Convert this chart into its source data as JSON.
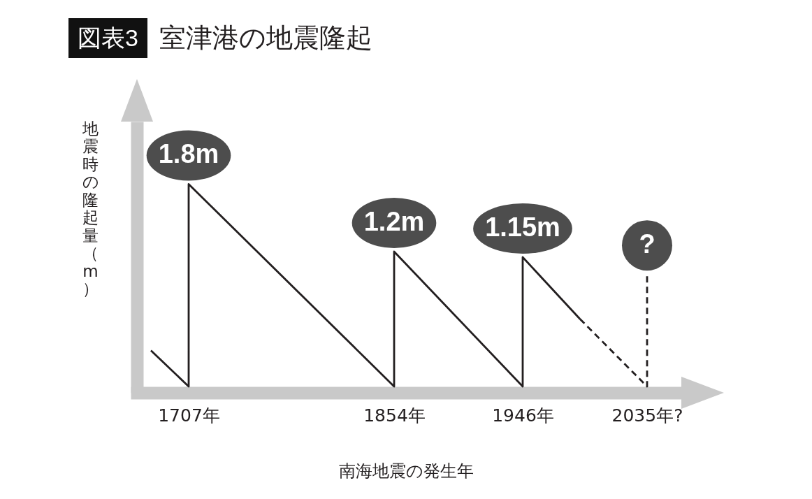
{
  "chart_data": {
    "type": "line",
    "title": "図表3 室津港の地震隆起",
    "xlabel": "南海地震の発生年",
    "ylabel": "地震時の隆起量（m）",
    "xlim": [
      1670,
      2055
    ],
    "xticks": [
      {
        "value": 1707,
        "label": "1707年"
      },
      {
        "value": 1854,
        "label": "1854年"
      },
      {
        "value": 1946,
        "label": "1946年"
      },
      {
        "value": 2035,
        "label": "2035年?"
      }
    ],
    "ylim": [
      0,
      2.3
    ],
    "tick_labels": "x",
    "grid": false,
    "marker": "none",
    "series": [
      {
        "color": "#231f20",
        "line_style": "solid",
        "x": [
          1680,
          1707,
          1707,
          1854,
          1854,
          1946,
          1946,
          1987
        ],
        "values": [
          0.32,
          0,
          1.8,
          0,
          1.2,
          0,
          1.15,
          0.6
        ],
        "value_labels": [
          null,
          null,
          "1.8m",
          null,
          "1.2m",
          null,
          "1.15m",
          null
        ]
      },
      {
        "color": "#231f20",
        "line_style": "dashed",
        "x": [
          1987,
          2035,
          2035
        ],
        "values": [
          0.6,
          0,
          1.0
        ],
        "value_labels": [
          null,
          null,
          "?"
        ]
      }
    ]
  }
}
